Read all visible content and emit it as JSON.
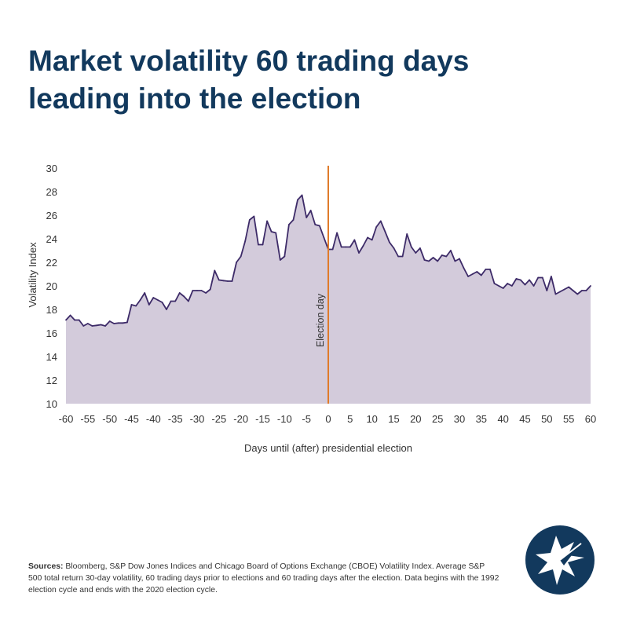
{
  "title_line1": "Market volatility 60 trading days",
  "title_line2": "leading into the election",
  "footnote": {
    "label": "Sources:",
    "text": "Bloomberg, S&P Dow Jones Indices and Chicago Board of Options Exchange (CBOE) Volatility Index. Average S&P 500 total return 30-day volatility, 60 trading days prior to elections and 60 trading days after the election. Data begins with the 1992 election cycle and ends with the 2020 election cycle."
  },
  "logo": {
    "icon": "compass-star-icon",
    "color": "#12395d"
  },
  "colors": {
    "line": "#3d2b68",
    "area": "#d3cbdb",
    "marker": "#e07b2a",
    "text": "#333333",
    "title": "#12395d"
  },
  "chart_data": {
    "type": "area",
    "xlabel": "Days until (after) presidential election",
    "ylabel": "Volatility Index",
    "xlim": [
      -60,
      60
    ],
    "ylim": [
      10,
      30
    ],
    "xticks": [
      -60,
      -55,
      -50,
      -45,
      -40,
      -35,
      -30,
      -25,
      -20,
      -15,
      -10,
      -5,
      0,
      5,
      10,
      15,
      20,
      25,
      30,
      35,
      40,
      45,
      50,
      55,
      60
    ],
    "yticks": [
      10,
      12,
      14,
      16,
      18,
      20,
      22,
      24,
      26,
      28,
      30
    ],
    "grid": false,
    "annotation": {
      "x": 0,
      "label": "Election day"
    },
    "x": [
      -60,
      -59,
      -58,
      -57,
      -56,
      -55,
      -54,
      -53,
      -52,
      -51,
      -50,
      -49,
      -48,
      -47,
      -46,
      -45,
      -44,
      -43,
      -42,
      -41,
      -40,
      -39,
      -38,
      -37,
      -36,
      -35,
      -34,
      -33,
      -32,
      -31,
      -30,
      -29,
      -28,
      -27,
      -26,
      -25,
      -24,
      -23,
      -22,
      -21,
      -20,
      -19,
      -18,
      -17,
      -16,
      -15,
      -14,
      -13,
      -12,
      -11,
      -10,
      -9,
      -8,
      -7,
      -6,
      -5,
      -4,
      -3,
      -2,
      -1,
      0,
      1,
      2,
      3,
      4,
      5,
      6,
      7,
      8,
      9,
      10,
      11,
      12,
      13,
      14,
      15,
      16,
      17,
      18,
      19,
      20,
      21,
      22,
      23,
      24,
      25,
      26,
      27,
      28,
      29,
      30,
      31,
      32,
      33,
      34,
      35,
      36,
      37,
      38,
      39,
      40,
      41,
      42,
      43,
      44,
      45,
      46,
      47,
      48,
      49,
      50,
      51,
      52,
      53,
      54,
      55,
      56,
      57,
      58,
      59,
      60
    ],
    "values": [
      17.1,
      17.5,
      17.1,
      17.1,
      16.6,
      16.8,
      16.6,
      16.65,
      16.7,
      16.6,
      17.0,
      16.8,
      16.85,
      16.85,
      16.9,
      18.4,
      18.3,
      18.8,
      19.4,
      18.4,
      19.0,
      18.8,
      18.6,
      18.0,
      18.7,
      18.7,
      19.4,
      19.1,
      18.7,
      19.6,
      19.6,
      19.6,
      19.4,
      19.7,
      21.3,
      20.5,
      20.45,
      20.4,
      20.4,
      22.0,
      22.5,
      23.8,
      25.6,
      25.9,
      23.5,
      23.5,
      25.5,
      24.6,
      24.5,
      22.2,
      22.5,
      25.2,
      25.6,
      27.3,
      27.7,
      25.8,
      26.4,
      25.2,
      25.1,
      24.1,
      23.1,
      23.1,
      24.5,
      23.3,
      23.3,
      23.3,
      23.9,
      22.8,
      23.4,
      24.1,
      23.9,
      25.0,
      25.5,
      24.6,
      23.7,
      23.2,
      22.5,
      22.5,
      24.4,
      23.3,
      22.8,
      23.2,
      22.2,
      22.1,
      22.4,
      22.1,
      22.6,
      22.5,
      23.0,
      22.1,
      22.3,
      21.5,
      20.8,
      21.0,
      21.2,
      20.9,
      21.4,
      21.4,
      20.2,
      20.0,
      19.8,
      20.2,
      20.0,
      20.6,
      20.5,
      20.1,
      20.5,
      20.0,
      20.7,
      20.7,
      19.6,
      20.8,
      19.3,
      19.5,
      19.7,
      19.9,
      19.6,
      19.3,
      19.6,
      19.6,
      20.0
    ]
  }
}
